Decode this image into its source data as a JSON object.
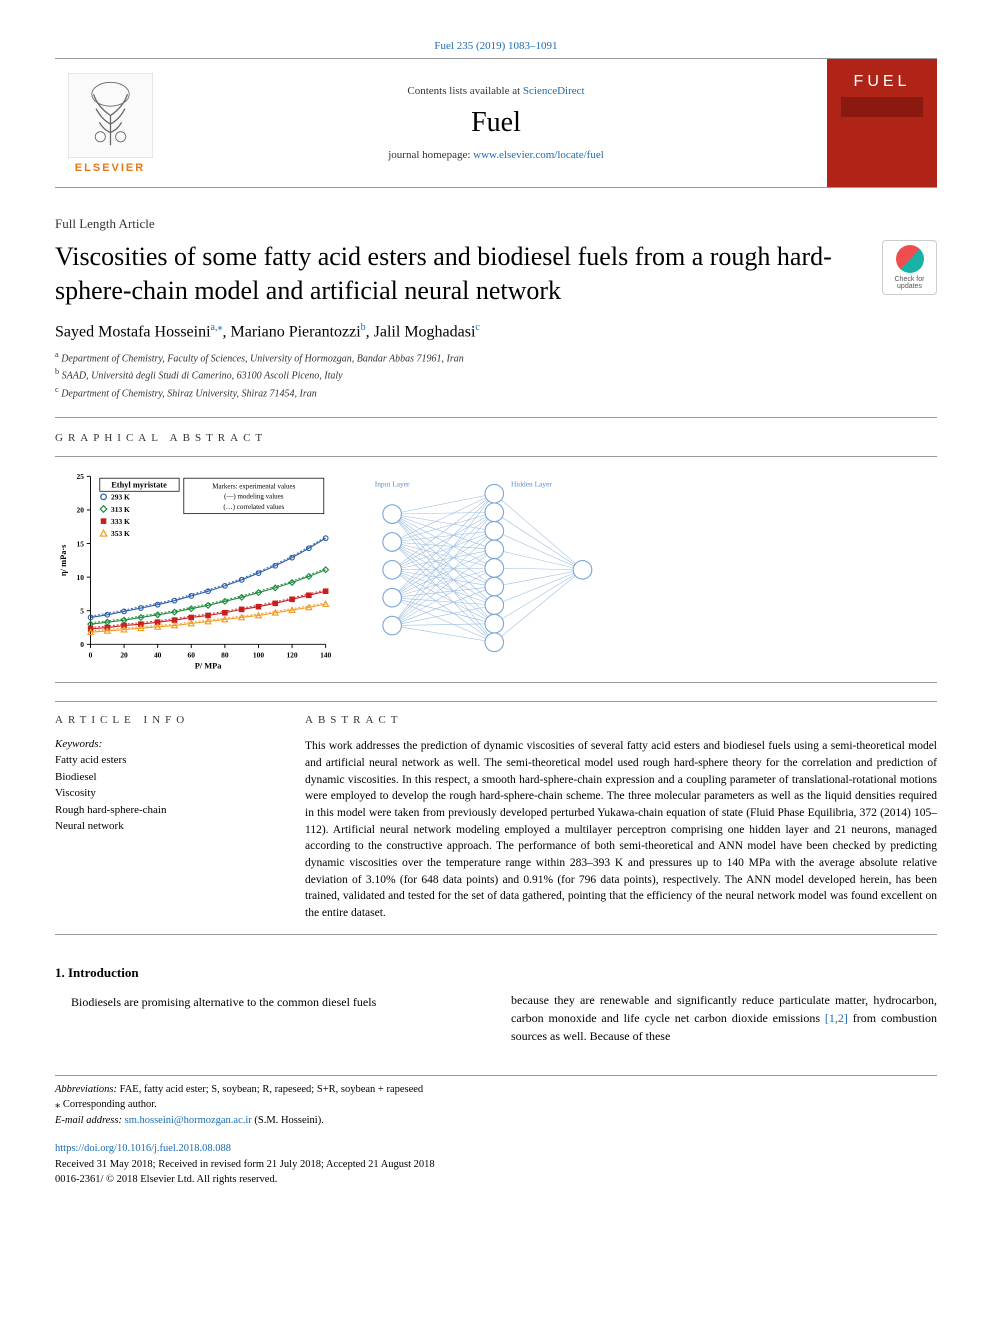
{
  "header": {
    "journal_ref": "Fuel 235 (2019) 1083–1091",
    "contents_prefix": "Contents lists available at ",
    "contents_link": "ScienceDirect",
    "journal_name": "Fuel",
    "homepage_prefix": "journal homepage: ",
    "homepage_link": "www.elsevier.com/locate/fuel",
    "publisher": "ELSEVIER",
    "cover_title": "FUEL"
  },
  "article": {
    "type": "Full Length Article",
    "title": "Viscosities of some fatty acid esters and biodiesel fuels from a rough hard-sphere-chain model and artificial neural network",
    "check_updates": "Check for updates",
    "authors_html": "Sayed Mostafa Hosseini|a,*|, Mariano Pierantozzi|b|, Jalil Moghadasi|c|",
    "authors": [
      {
        "name": "Sayed Mostafa Hosseini",
        "sup": "a,⁎"
      },
      {
        "name": "Mariano Pierantozzi",
        "sup": "b"
      },
      {
        "name": "Jalil Moghadasi",
        "sup": "c"
      }
    ],
    "affiliations": [
      {
        "sup": "a",
        "text": "Department of Chemistry, Faculty of Sciences, University of Hormozgan, Bandar Abbas 71961, Iran"
      },
      {
        "sup": "b",
        "text": "SAAD, Università degli Studi di Camerino, 63100 Ascoli Piceno, Italy"
      },
      {
        "sup": "c",
        "text": "Department of Chemistry, Shiraz University, Shiraz 71454, Iran"
      }
    ]
  },
  "sections": {
    "graphical_abstract_label": "GRAPHICAL ABSTRACT",
    "article_info_label": "ARTICLE INFO",
    "abstract_label": "ABSTRACT",
    "keywords_label": "Keywords:",
    "keywords": [
      "Fatty acid esters",
      "Biodiesel",
      "Viscosity",
      "Rough hard-sphere-chain",
      "Neural network"
    ],
    "abstract": "This work addresses the prediction of dynamic viscosities of several fatty acid esters and biodiesel fuels using a semi-theoretical model and artificial neural network as well. The semi-theoretical model used rough hard-sphere theory for the correlation and prediction of dynamic viscosities. In this respect, a smooth hard-sphere-chain expression and a coupling parameter of translational-rotational motions were employed to develop the rough hard-sphere-chain scheme. The three molecular parameters as well as the liquid densities required in this model were taken from previously developed perturbed Yukawa-chain equation of state (Fluid Phase Equilibria, 372 (2014) 105–112). Artificial neural network modeling employed a multilayer perceptron comprising one hidden layer and 21 neurons, managed according to the constructive approach. The performance of both semi-theoretical and ANN model have been checked by predicting dynamic viscosities over the temperature range within 283–393 K and pressures up to 140 MPa with the average absolute relative deviation of 3.10% (for 648 data points) and 0.91% (for 796 data points), respectively. The ANN model developed herein, has been trained, validated and tested for the set of data gathered, pointing that the efficiency of the neural network model was found excellent on the entire dataset."
  },
  "chart": {
    "type": "scatter-line",
    "title": "Ethyl myristate",
    "legend_note": "Markers: experimental values\n(—) modeling values\n(…) correlated values",
    "xlabel": "P/ MPa",
    "ylabel": "η/ mPa·s",
    "xlim": [
      0,
      140
    ],
    "ylim": [
      0,
      25
    ],
    "xticks": [
      0,
      20,
      40,
      60,
      80,
      100,
      120,
      140
    ],
    "yticks": [
      0,
      5,
      10,
      15,
      20,
      25
    ],
    "background_color": "#ffffff",
    "axis_color": "#000000",
    "grid": false,
    "series": [
      {
        "label": "293 K",
        "marker": "circle",
        "color": "#2a5caa",
        "dotted_color": "#2a5caa",
        "points": [
          [
            0.1,
            4.0
          ],
          [
            10,
            4.4
          ],
          [
            20,
            4.9
          ],
          [
            30,
            5.4
          ],
          [
            40,
            5.9
          ],
          [
            50,
            6.5
          ],
          [
            60,
            7.2
          ],
          [
            70,
            7.9
          ],
          [
            80,
            8.7
          ],
          [
            90,
            9.6
          ],
          [
            100,
            10.6
          ],
          [
            110,
            11.7
          ],
          [
            120,
            12.9
          ],
          [
            130,
            14.3
          ],
          [
            140,
            15.8
          ]
        ]
      },
      {
        "label": "313 K",
        "marker": "diamond",
        "color": "#1a8b3a",
        "dotted_color": "#1a8b3a",
        "points": [
          [
            0.1,
            3.0
          ],
          [
            10,
            3.3
          ],
          [
            20,
            3.6
          ],
          [
            30,
            4.0
          ],
          [
            40,
            4.4
          ],
          [
            50,
            4.8
          ],
          [
            60,
            5.3
          ],
          [
            70,
            5.8
          ],
          [
            80,
            6.4
          ],
          [
            90,
            7.0
          ],
          [
            100,
            7.7
          ],
          [
            110,
            8.4
          ],
          [
            120,
            9.2
          ],
          [
            130,
            10.1
          ],
          [
            140,
            11.1
          ]
        ]
      },
      {
        "label": "333 K",
        "marker": "square",
        "color": "#c81e1e",
        "dotted_color": "#c81e1e",
        "points": [
          [
            0.1,
            2.3
          ],
          [
            10,
            2.5
          ],
          [
            20,
            2.8
          ],
          [
            30,
            3.0
          ],
          [
            40,
            3.3
          ],
          [
            50,
            3.6
          ],
          [
            60,
            4.0
          ],
          [
            70,
            4.3
          ],
          [
            80,
            4.7
          ],
          [
            90,
            5.2
          ],
          [
            100,
            5.6
          ],
          [
            110,
            6.1
          ],
          [
            120,
            6.7
          ],
          [
            130,
            7.3
          ],
          [
            140,
            7.9
          ]
        ]
      },
      {
        "label": "353 K",
        "marker": "triangle",
        "color": "#f29b1e",
        "dotted_color": "#f29b1e",
        "points": [
          [
            0.1,
            1.8
          ],
          [
            10,
            2.0
          ],
          [
            20,
            2.2
          ],
          [
            30,
            2.4
          ],
          [
            40,
            2.6
          ],
          [
            50,
            2.8
          ],
          [
            60,
            3.1
          ],
          [
            70,
            3.4
          ],
          [
            80,
            3.7
          ],
          [
            90,
            4.0
          ],
          [
            100,
            4.3
          ],
          [
            110,
            4.7
          ],
          [
            120,
            5.1
          ],
          [
            130,
            5.5
          ],
          [
            140,
            6.0
          ]
        ]
      }
    ],
    "label_fontsize": 9,
    "tick_fontsize": 8
  },
  "nn_diagram": {
    "type": "network",
    "labels": {
      "input": "Input Layer",
      "hidden": "Hidden Layer"
    },
    "input_nodes": 5,
    "hidden_nodes": 9,
    "output_nodes": 1,
    "node_stroke": "#7aa7d6",
    "node_fill": "#ffffff",
    "edge_color": "#9bbce0",
    "label_color": "#5a8dc8",
    "node_radius": 10
  },
  "intro": {
    "heading": "1. Introduction",
    "col1": "Biodiesels are promising alternative to the common diesel fuels",
    "col2_pre": "because they are renewable and significantly reduce particulate matter, hydrocarbon, carbon monoxide and life cycle net carbon dioxide emissions ",
    "col2_ref": "[1,2]",
    "col2_post": " from combustion sources as well. Because of these"
  },
  "footnotes": {
    "abbrev_label": "Abbreviations:",
    "abbrev": " FAE, fatty acid ester; S, soybean; R, rapeseed; S+R, soybean + rapeseed",
    "corresponding": "⁎ Corresponding author.",
    "email_label": "E-mail address: ",
    "email": "sm.hosseini@hormozgan.ac.ir",
    "email_suffix": " (S.M. Hosseini).",
    "doi": "https://doi.org/10.1016/j.fuel.2018.08.088",
    "received": "Received 31 May 2018; Received in revised form 21 July 2018; Accepted 21 August 2018",
    "copyright": "0016-2361/ © 2018 Elsevier Ltd. All rights reserved."
  }
}
